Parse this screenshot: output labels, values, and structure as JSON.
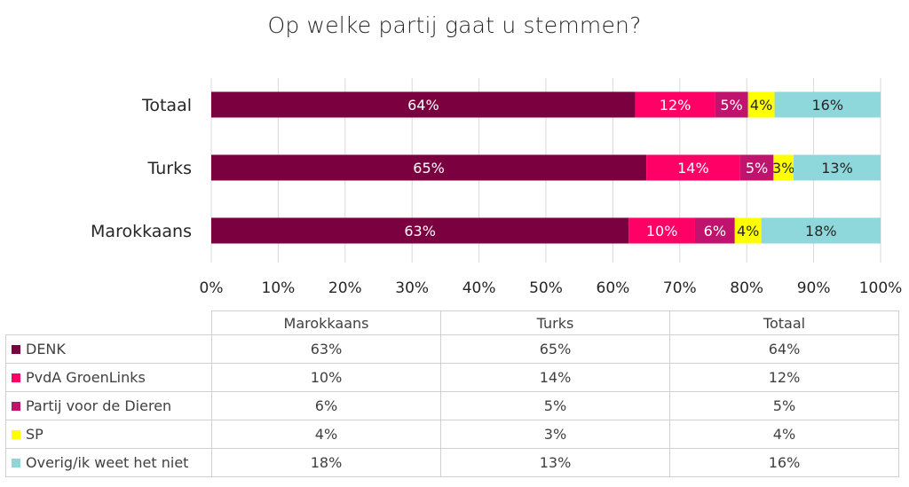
{
  "title": "Op welke partij gaat u stemmen?",
  "chart_data": {
    "type": "bar",
    "orientation": "horizontal",
    "stacked": true,
    "categories": [
      "Totaal",
      "Turks",
      "Marokkaans"
    ],
    "series": [
      {
        "name": "DENK",
        "color": "#7b0040",
        "values": [
          64,
          65,
          63
        ],
        "labels": [
          "64%",
          "65%",
          "63%"
        ]
      },
      {
        "name": "PvdA GroenLinks",
        "color": "#ff0066",
        "values": [
          12,
          14,
          10
        ],
        "labels": [
          "12%",
          "14%",
          "10%"
        ]
      },
      {
        "name": "Partij voor de Dieren",
        "color": "#c0136e",
        "values": [
          5,
          5,
          6
        ],
        "labels": [
          "5%",
          "5%",
          "6%"
        ]
      },
      {
        "name": "SP",
        "color": "#ffff00",
        "values": [
          4,
          3,
          4
        ],
        "labels": [
          "4%",
          "3%",
          "4%"
        ]
      },
      {
        "name": "Overig/ik weet het niet",
        "color": "#8ed8dc",
        "values": [
          16,
          13,
          18
        ],
        "labels": [
          "16%",
          "13%",
          "18%"
        ]
      }
    ],
    "xlim": [
      0,
      100
    ],
    "x_ticks": [
      "0%",
      "10%",
      "20%",
      "30%",
      "40%",
      "50%",
      "60%",
      "70%",
      "80%",
      "90%",
      "100%"
    ],
    "label_colors": {
      "dark": "#ffffff",
      "light": "#262626"
    }
  },
  "table": {
    "columns": [
      "Marokkaans",
      "Turks",
      "Totaal"
    ],
    "rows": [
      {
        "label": "DENK",
        "color": "#7b0040",
        "values": [
          "63%",
          "65%",
          "64%"
        ]
      },
      {
        "label": "PvdA GroenLinks",
        "color": "#ff0066",
        "values": [
          "10%",
          "14%",
          "12%"
        ]
      },
      {
        "label": "Partij voor de Dieren",
        "color": "#c0136e",
        "values": [
          "6%",
          "5%",
          "5%"
        ]
      },
      {
        "label": "SP",
        "color": "#ffff00",
        "values": [
          "4%",
          "3%",
          "4%"
        ]
      },
      {
        "label": "Overig/ik weet het niet",
        "color": "#8ed8dc",
        "values": [
          "18%",
          "13%",
          "16%"
        ]
      }
    ]
  }
}
